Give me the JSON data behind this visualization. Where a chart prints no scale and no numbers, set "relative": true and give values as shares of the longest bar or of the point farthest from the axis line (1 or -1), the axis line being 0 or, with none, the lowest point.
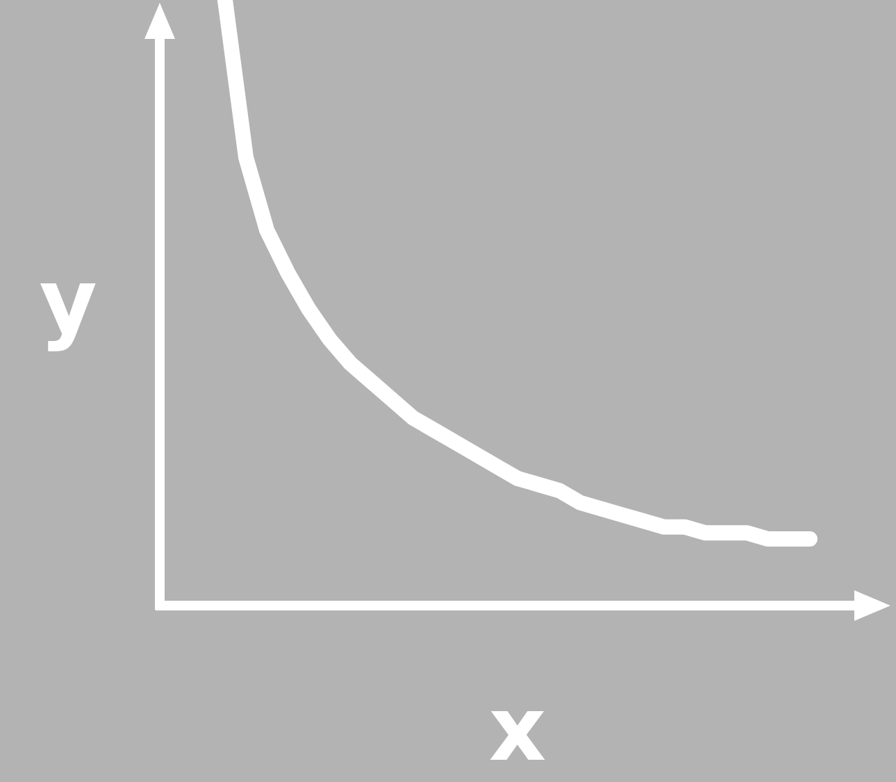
{
  "chart_data": {
    "type": "line",
    "relative": true,
    "xlabel": "x",
    "ylabel": "y",
    "line_style": "solid",
    "categories": [
      null,
      null,
      null,
      null,
      null,
      null,
      null,
      null,
      null,
      null,
      null,
      null,
      null,
      null,
      null,
      null,
      null,
      null,
      null,
      null,
      null,
      null,
      null,
      null,
      null,
      null,
      null,
      null,
      null
    ],
    "series": [
      {
        "color": "#ffffff",
        "values": [
          1,
          0.74,
          0.62,
          0.55,
          0.49,
          0.44,
          0.4,
          0.37,
          0.34,
          0.31,
          0.29,
          0.27,
          0.25,
          0.23,
          0.21,
          0.2,
          0.19,
          0.17,
          0.16,
          0.15,
          0.14,
          0.13,
          0.13,
          0.12,
          0.12,
          0.12,
          0.11,
          0.11,
          0.11
        ]
      }
    ]
  }
}
